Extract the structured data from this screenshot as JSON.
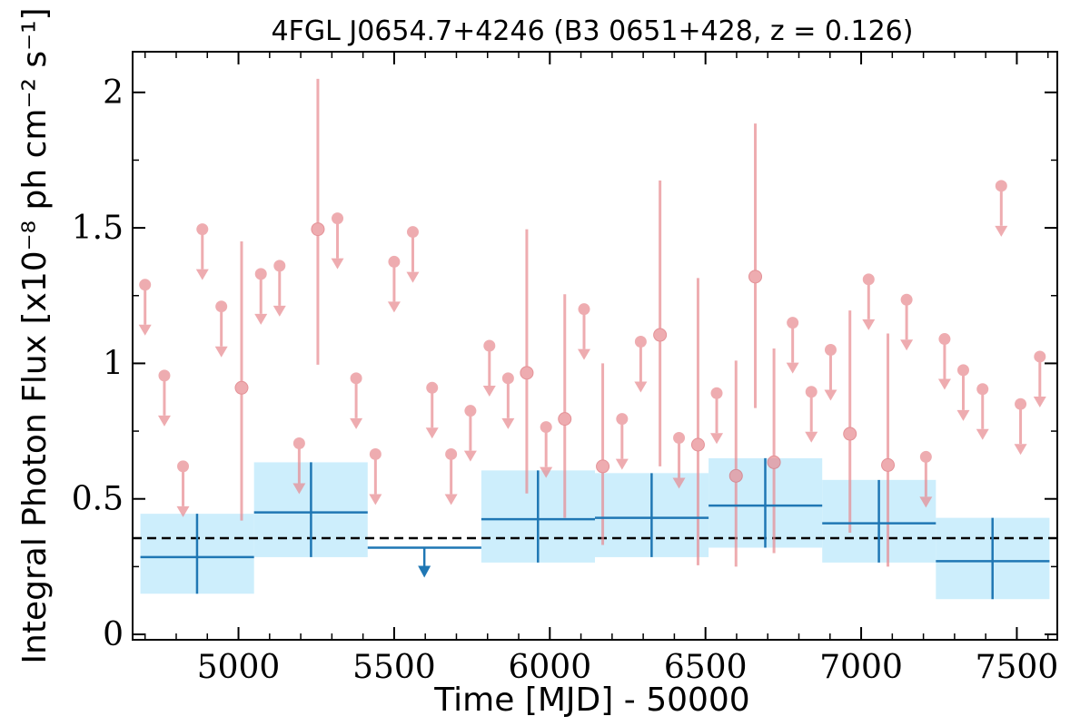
{
  "chart_data": {
    "type": "scatter",
    "title": "4FGL J0654.7+4246 (B3 0651+428, z = 0.126)",
    "xlabel": "Time [MJD] - 50000",
    "ylabel": "Integral Photon Flux [x10⁻⁸ ph cm⁻² s⁻¹]",
    "xlim": [
      4660,
      7630
    ],
    "ylim": [
      -0.02,
      2.15
    ],
    "x_ticks": [
      5000,
      5500,
      6000,
      6500,
      7000,
      7500
    ],
    "x_tick_labels": [
      "5000",
      "5500",
      "6000",
      "6500",
      "7000",
      "7500"
    ],
    "y_ticks": [
      0,
      0.5,
      1,
      1.5,
      2
    ],
    "y_tick_labels": [
      "0",
      "0.5",
      "1",
      "1.5",
      "2"
    ],
    "grid": false,
    "mean_flux_line": 0.355,
    "colors": {
      "short_bins": "#e88a90",
      "long_bins": "#1f77b4",
      "long_bins_band": "#cdeefc",
      "mean_line": "#000000"
    },
    "long_bins": [
      {
        "x": 4867,
        "x_lo": 4685,
        "x_hi": 5050,
        "y": 0.285,
        "y_lo": 0.15,
        "y_hi": 0.445
      },
      {
        "x": 5233,
        "x_lo": 5050,
        "x_hi": 5415,
        "y": 0.45,
        "y_lo": 0.285,
        "y_hi": 0.635
      },
      {
        "x": 5597,
        "x_lo": 5415,
        "x_hi": 5780,
        "y": 0.32,
        "upper_limit": true
      },
      {
        "x": 5962,
        "x_lo": 5780,
        "x_hi": 6145,
        "y": 0.425,
        "y_lo": 0.265,
        "y_hi": 0.605
      },
      {
        "x": 6327,
        "x_lo": 6145,
        "x_hi": 6510,
        "y": 0.43,
        "y_lo": 0.285,
        "y_hi": 0.595
      },
      {
        "x": 6692,
        "x_lo": 6510,
        "x_hi": 6875,
        "y": 0.475,
        "y_lo": 0.32,
        "y_hi": 0.65
      },
      {
        "x": 7057,
        "x_lo": 6875,
        "x_hi": 7240,
        "y": 0.41,
        "y_lo": 0.265,
        "y_hi": 0.57
      },
      {
        "x": 7422,
        "x_lo": 7240,
        "x_hi": 7605,
        "y": 0.27,
        "y_lo": 0.13,
        "y_hi": 0.43
      }
    ],
    "short_bin_upper_limits": [
      {
        "x": 4700,
        "y": 1.29
      },
      {
        "x": 4762,
        "y": 0.955
      },
      {
        "x": 4822,
        "y": 0.62
      },
      {
        "x": 4884,
        "y": 1.495
      },
      {
        "x": 4945,
        "y": 1.21
      },
      {
        "x": 5072,
        "y": 1.33
      },
      {
        "x": 5132,
        "y": 1.36
      },
      {
        "x": 5195,
        "y": 0.705
      },
      {
        "x": 5318,
        "y": 1.535
      },
      {
        "x": 5378,
        "y": 0.945
      },
      {
        "x": 5440,
        "y": 0.665
      },
      {
        "x": 5500,
        "y": 1.375
      },
      {
        "x": 5560,
        "y": 1.485
      },
      {
        "x": 5622,
        "y": 0.91
      },
      {
        "x": 5683,
        "y": 0.665
      },
      {
        "x": 5745,
        "y": 0.825
      },
      {
        "x": 5806,
        "y": 1.065
      },
      {
        "x": 5866,
        "y": 0.945
      },
      {
        "x": 5988,
        "y": 0.765
      },
      {
        "x": 6110,
        "y": 1.2
      },
      {
        "x": 6232,
        "y": 0.795
      },
      {
        "x": 6292,
        "y": 1.08
      },
      {
        "x": 6415,
        "y": 0.725
      },
      {
        "x": 6536,
        "y": 0.89
      },
      {
        "x": 6780,
        "y": 1.15
      },
      {
        "x": 6840,
        "y": 0.895
      },
      {
        "x": 6902,
        "y": 1.05
      },
      {
        "x": 7024,
        "y": 1.31
      },
      {
        "x": 7146,
        "y": 1.235
      },
      {
        "x": 7208,
        "y": 0.655
      },
      {
        "x": 7268,
        "y": 1.09
      },
      {
        "x": 7328,
        "y": 0.975
      },
      {
        "x": 7390,
        "y": 0.905
      },
      {
        "x": 7450,
        "y": 1.655
      },
      {
        "x": 7512,
        "y": 0.85
      },
      {
        "x": 7574,
        "y": 1.025
      }
    ],
    "short_bin_detections": [
      {
        "x": 5010,
        "y": 0.91,
        "y_lo": 0.42,
        "y_hi": 1.45
      },
      {
        "x": 5255,
        "y": 1.495,
        "y_lo": 0.995,
        "y_hi": 2.05
      },
      {
        "x": 5926,
        "y": 0.965,
        "y_lo": 0.52,
        "y_hi": 1.495
      },
      {
        "x": 6048,
        "y": 0.795,
        "y_lo": 0.43,
        "y_hi": 1.255
      },
      {
        "x": 6170,
        "y": 0.62,
        "y_lo": 0.33,
        "y_hi": 1.0
      },
      {
        "x": 6354,
        "y": 1.105,
        "y_lo": 0.62,
        "y_hi": 1.675
      },
      {
        "x": 6476,
        "y": 0.7,
        "y_lo": 0.255,
        "y_hi": 1.315
      },
      {
        "x": 6598,
        "y": 0.585,
        "y_lo": 0.25,
        "y_hi": 1.01
      },
      {
        "x": 6660,
        "y": 1.32,
        "y_lo": 0.835,
        "y_hi": 1.885
      },
      {
        "x": 6720,
        "y": 0.635,
        "y_lo": 0.3,
        "y_hi": 1.055
      },
      {
        "x": 6964,
        "y": 0.74,
        "y_lo": 0.375,
        "y_hi": 1.195
      },
      {
        "x": 7086,
        "y": 0.625,
        "y_lo": 0.25,
        "y_hi": 1.11
      }
    ]
  }
}
